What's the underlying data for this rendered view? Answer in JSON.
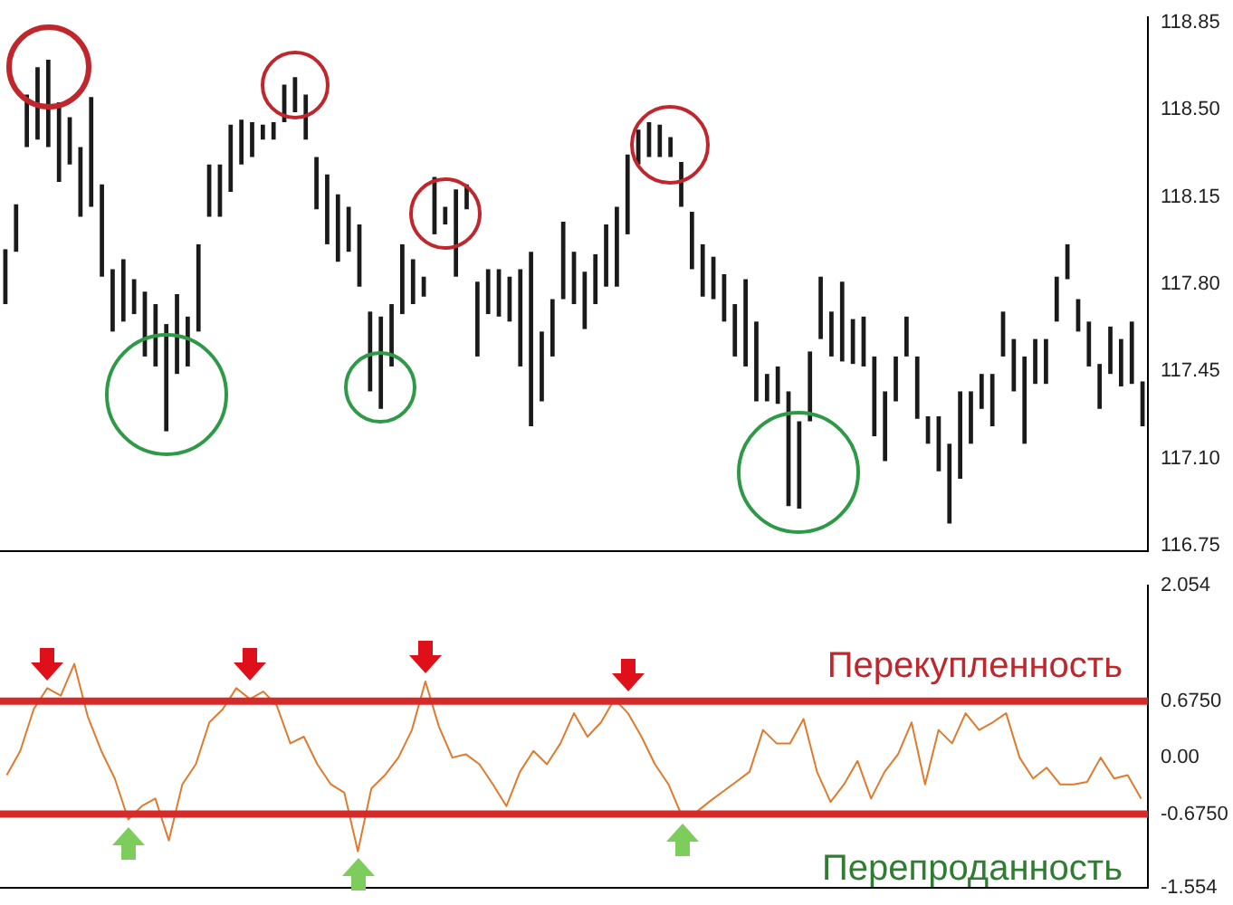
{
  "chart_data": [
    {
      "type": "bar",
      "color": "#1a1a1a",
      "grid": false,
      "legend": false,
      "tick_labels": "y",
      "categories": [
        null,
        null,
        null,
        null,
        null,
        null,
        null,
        null,
        null,
        null,
        null,
        null,
        null,
        null,
        null,
        null,
        null,
        null,
        null,
        null,
        null,
        null,
        null,
        null,
        null,
        null,
        null,
        null,
        null,
        null,
        null,
        null,
        null,
        null,
        null,
        null,
        null,
        null,
        null,
        null,
        null,
        null,
        null,
        null,
        null,
        null,
        null,
        null,
        null,
        null,
        null,
        null,
        null,
        null,
        null,
        null,
        null,
        null,
        null,
        null,
        null,
        null,
        null,
        null,
        null,
        null,
        null,
        null,
        null,
        null,
        null,
        null,
        null,
        null,
        null,
        null,
        null,
        null,
        null,
        null,
        null,
        null,
        null,
        null,
        null,
        null,
        null,
        null,
        null,
        null,
        null,
        null,
        null,
        null,
        null,
        null,
        null,
        null,
        null,
        null,
        null,
        null,
        null,
        null,
        null,
        null,
        null
      ],
      "base": [
        117.72,
        117.93,
        118.35,
        118.38,
        118.35,
        118.21,
        118.28,
        118.07,
        118.11,
        117.83,
        117.61,
        117.65,
        117.68,
        117.51,
        117.47,
        117.21,
        117.44,
        117.47,
        117.61,
        118.07,
        118.07,
        118.17,
        118.28,
        118.31,
        118.38,
        118.38,
        118.45,
        118.49,
        118.38,
        118.1,
        117.96,
        117.89,
        117.93,
        117.79,
        117.37,
        117.3,
        117.47,
        117.68,
        117.72,
        117.75,
        118.0,
        118.04,
        117.83,
        118.1,
        117.51,
        117.68,
        117.67,
        117.65,
        117.47,
        117.23,
        117.33,
        117.51,
        117.74,
        117.72,
        117.62,
        117.72,
        117.79,
        117.79,
        118.0,
        118.28,
        118.31,
        118.31,
        118.31,
        118.11,
        117.86,
        117.75,
        117.74,
        117.65,
        117.51,
        117.47,
        117.33,
        117.33,
        117.32,
        116.91,
        116.9,
        117.25,
        117.58,
        117.51,
        117.49,
        117.48,
        117.47,
        117.19,
        117.09,
        117.33,
        117.51,
        117.26,
        117.16,
        117.05,
        116.84,
        117.02,
        117.16,
        117.3,
        117.23,
        117.51,
        117.37,
        117.16,
        117.4,
        117.4,
        117.65,
        117.82,
        117.61,
        117.47,
        117.3,
        117.44,
        117.39,
        117.4,
        117.23
      ],
      "values": [
        0.22,
        0.19,
        0.21,
        0.29,
        0.35,
        0.32,
        0.19,
        0.28,
        0.44,
        0.37,
        0.25,
        0.25,
        0.14,
        0.26,
        0.25,
        0.43,
        0.32,
        0.2,
        0.35,
        0.21,
        0.21,
        0.27,
        0.18,
        0.14,
        0.06,
        0.07,
        0.15,
        0.14,
        0.18,
        0.21,
        0.28,
        0.27,
        0.18,
        0.25,
        0.32,
        0.37,
        0.25,
        0.28,
        0.18,
        0.08,
        0.23,
        0.07,
        0.35,
        0.1,
        0.3,
        0.18,
        0.19,
        0.18,
        0.39,
        0.7,
        0.28,
        0.23,
        0.31,
        0.21,
        0.23,
        0.2,
        0.25,
        0.32,
        0.32,
        0.14,
        0.14,
        0.13,
        0.08,
        0.18,
        0.23,
        0.21,
        0.17,
        0.19,
        0.21,
        0.35,
        0.32,
        0.11,
        0.15,
        0.46,
        0.35,
        0.28,
        0.25,
        0.18,
        0.32,
        0.18,
        0.2,
        0.32,
        0.28,
        0.18,
        0.16,
        0.25,
        0.11,
        0.22,
        0.32,
        0.35,
        0.21,
        0.14,
        0.21,
        0.18,
        0.21,
        0.35,
        0.18,
        0.18,
        0.18,
        0.14,
        0.13,
        0.18,
        0.18,
        0.19,
        0.19,
        0.25,
        0.18
      ],
      "ylim": [
        116.73,
        118.87
      ],
      "yticks": [
        116.75,
        {
          "value": 117.1,
          "label": "117.10"
        },
        117.45,
        {
          "value": 117.8,
          "label": "117.80"
        },
        118.15,
        {
          "value": 118.5,
          "label": "118.50"
        },
        118.85
      ]
    },
    {
      "type": "line",
      "color": "#e07a2c",
      "grid": false,
      "legend": false,
      "tick_labels": "y",
      "marker": "none",
      "categories": [
        null,
        null,
        null,
        null,
        null,
        null,
        null,
        null,
        null,
        null,
        null,
        null,
        null,
        null,
        null,
        null,
        null,
        null,
        null,
        null,
        null,
        null,
        null,
        null,
        null,
        null,
        null,
        null,
        null,
        null,
        null,
        null,
        null,
        null,
        null,
        null,
        null,
        null,
        null,
        null,
        null,
        null,
        null,
        null,
        null,
        null,
        null,
        null,
        null,
        null,
        null,
        null,
        null,
        null,
        null,
        null,
        null,
        null,
        null,
        null,
        null,
        null,
        null,
        null,
        null,
        null,
        null,
        null,
        null,
        null,
        null,
        null,
        null,
        null,
        null,
        null,
        null,
        null,
        null,
        null,
        null,
        null,
        null,
        null,
        null
      ],
      "values": [
        -0.21,
        0.08,
        0.58,
        0.83,
        0.74,
        1.12,
        0.49,
        0.08,
        -0.25,
        -0.74,
        -0.58,
        -0.49,
        -0.99,
        -0.32,
        -0.08,
        0.42,
        0.58,
        0.83,
        0.7,
        0.79,
        0.62,
        0.17,
        0.25,
        -0.08,
        -0.32,
        -0.42,
        -1.12,
        -0.37,
        -0.21,
        0.0,
        0.33,
        0.91,
        0.37,
        0.0,
        0.04,
        -0.08,
        -0.32,
        -0.58,
        -0.17,
        0.08,
        -0.08,
        0.17,
        0.53,
        0.25,
        0.42,
        0.7,
        0.53,
        0.25,
        -0.08,
        -0.32,
        -0.7,
        -0.66,
        -0.53,
        -0.41,
        -0.29,
        -0.17,
        0.33,
        0.17,
        0.17,
        0.46,
        -0.17,
        -0.53,
        -0.32,
        -0.04,
        -0.49,
        -0.17,
        0.04,
        0.42,
        -0.32,
        0.33,
        0.17,
        0.53,
        0.33,
        0.42,
        0.53,
        0.0,
        -0.25,
        -0.12,
        -0.32,
        -0.32,
        -0.29,
        0.0,
        -0.25,
        -0.21,
        -0.49
      ],
      "ylim": [
        -1.554,
        2.054
      ],
      "yticks": [
        -1.554,
        {
          "value": -0.675,
          "label": "-0.6750"
        },
        {
          "value": 0,
          "label": "0.00"
        },
        {
          "value": 0.675,
          "label": "0.6750"
        },
        2.054
      ],
      "ref_lines": [
        {
          "axis": "y",
          "value": 0.675,
          "color": "#d42a2a"
        },
        {
          "axis": "y",
          "value": -0.675,
          "color": "#d42a2a"
        }
      ],
      "annotations": [
        "Перекупленность",
        "Перепроданность"
      ]
    }
  ]
}
